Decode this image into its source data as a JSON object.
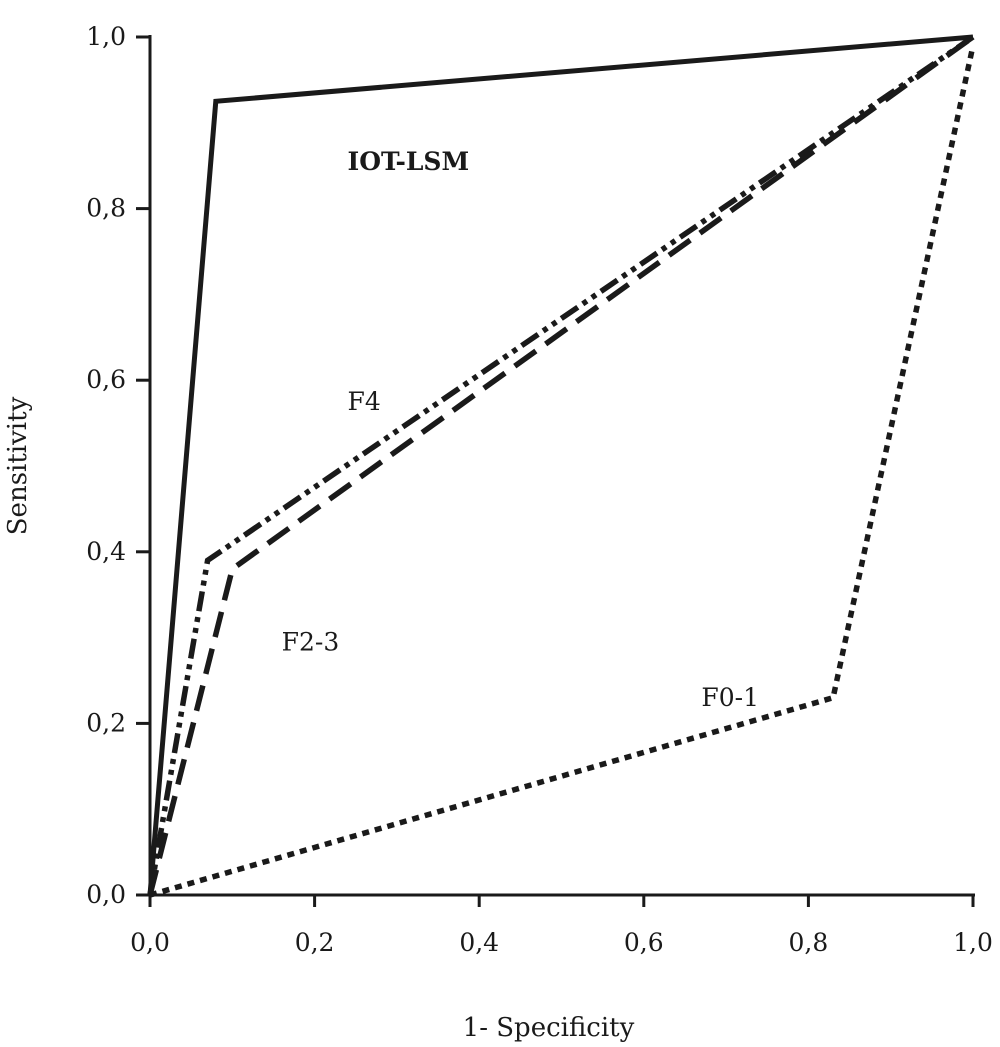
{
  "chart_data": {
    "type": "line",
    "title": "",
    "xlabel": "1- Specificity",
    "ylabel": "Sensitivity",
    "xlim": [
      0,
      1
    ],
    "ylim": [
      0,
      1
    ],
    "x_ticks": [
      "0,0",
      "0,2",
      "0,4",
      "0,6",
      "0,8",
      "1,0"
    ],
    "y_ticks": [
      "0,0",
      "0,2",
      "0,4",
      "0,6",
      "0,8",
      "1,0"
    ],
    "x_tick_values": [
      0,
      0.2,
      0.4,
      0.6,
      0.8,
      1.0
    ],
    "y_tick_values": [
      0,
      0.2,
      0.4,
      0.6,
      0.8,
      1.0
    ],
    "grid": false,
    "series": [
      {
        "name": "IOT-LSM",
        "line_style": "solid",
        "color": "#1a1a1a",
        "x": [
          0.0,
          0.08,
          1.0
        ],
        "y": [
          0.0,
          0.925,
          1.0
        ]
      },
      {
        "name": "F4",
        "line_style": "dash-dot-dot",
        "color": "#1a1a1a",
        "x": [
          0.0,
          0.07,
          1.0
        ],
        "y": [
          0.0,
          0.39,
          1.0
        ]
      },
      {
        "name": "F2-3",
        "line_style": "dashed",
        "color": "#1a1a1a",
        "x": [
          0.0,
          0.1,
          1.0
        ],
        "y": [
          0.0,
          0.38,
          1.0
        ]
      },
      {
        "name": "F0-1",
        "line_style": "dotted",
        "color": "#1a1a1a",
        "x": [
          0.0,
          0.83,
          1.0
        ],
        "y": [
          0.0,
          0.23,
          0.99
        ]
      }
    ]
  }
}
